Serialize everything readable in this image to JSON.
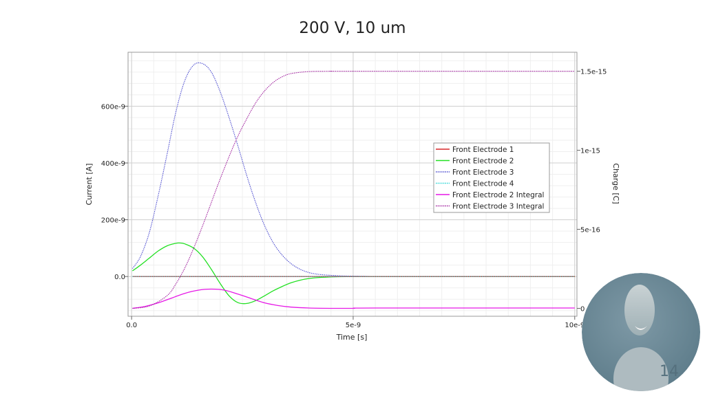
{
  "slide": {
    "title": "200 V,  10 um",
    "page_number": "14"
  },
  "chart_data": {
    "type": "line",
    "title": "",
    "xlabel": "Time [s]",
    "ylabel": "Current [A]",
    "y2label": "Charge [C]",
    "xlim": [
      -8e-11,
      1.005e-08
    ],
    "ylim": [
      -1.4e-07,
      7.9e-07
    ],
    "y2lim": [
      -5e-17,
      1.62e-15
    ],
    "xticks": [
      {
        "value": 0,
        "label": "0.0"
      },
      {
        "value": 5e-09,
        "label": "5e-9"
      },
      {
        "value": 1e-08,
        "label": "10e-9"
      }
    ],
    "yticks": [
      {
        "value": 0,
        "label": "0.0"
      },
      {
        "value": 2e-07,
        "label": "200e-9"
      },
      {
        "value": 4e-07,
        "label": "400e-9"
      },
      {
        "value": 6e-07,
        "label": "600e-9"
      }
    ],
    "y2ticks": [
      {
        "value": 0,
        "label": "0"
      },
      {
        "value": 5e-16,
        "label": "5e-16"
      },
      {
        "value": 1e-15,
        "label": "1e-15"
      },
      {
        "value": 1.5e-15,
        "label": "1.5e-15"
      }
    ],
    "grid": true,
    "legend_position": "center-right",
    "series": [
      {
        "name": "Front Electrode 1",
        "axis": "left",
        "color": "#d62728",
        "dash": "solid",
        "x": [
          0.0,
          1e-08
        ],
        "y": [
          0,
          0
        ]
      },
      {
        "name": "Front Electrode 2",
        "axis": "left",
        "color": "#22e022",
        "dash": "solid",
        "x": [
          0.0,
          2e-10,
          4e-10,
          6e-10,
          8e-10,
          1e-09,
          1.1e-09,
          1.2e-09,
          1.4e-09,
          1.6e-09,
          1.8e-09,
          2e-09,
          2.2e-09,
          2.4e-09,
          2.6e-09,
          2.8e-09,
          3e-09,
          3.2e-09,
          3.4e-09,
          3.6e-09,
          3.8e-09,
          4e-09,
          4.3e-09,
          4.6e-09,
          5e-09,
          5.5e-09,
          1e-08
        ],
        "y": [
          2e-08,
          4e-08,
          6.5e-08,
          9e-08,
          1.08e-07,
          1.17e-07,
          1.18e-07,
          1.15e-07,
          1e-07,
          7e-08,
          2.5e-08,
          -2.5e-08,
          -6.8e-08,
          -9.2e-08,
          -9.5e-08,
          -8.5e-08,
          -6.8e-08,
          -5e-08,
          -3.5e-08,
          -2.2e-08,
          -1.3e-08,
          -7e-09,
          -3e-09,
          -1e-09,
          0,
          0,
          0
        ]
      },
      {
        "name": "Front Electrode 3",
        "axis": "left",
        "color": "#4a4acf",
        "dash": "dotted",
        "x": [
          0.0,
          2e-10,
          4e-10,
          6e-10,
          8e-10,
          1e-09,
          1.2e-09,
          1.4e-09,
          1.6e-09,
          1.8e-09,
          2e-09,
          2.2e-09,
          2.4e-09,
          2.6e-09,
          2.8e-09,
          3e-09,
          3.2e-09,
          3.4e-09,
          3.6e-09,
          3.8e-09,
          4e-09,
          4.2e-09,
          4.5e-09,
          4.8e-09,
          5.2e-09,
          6e-09,
          1e-08
        ],
        "y": [
          2.8e-08,
          7e-08,
          1.55e-07,
          2.85e-07,
          4.3e-07,
          5.8e-07,
          6.9e-07,
          7.45e-07,
          7.5e-07,
          7.2e-07,
          6.5e-07,
          5.6e-07,
          4.6e-07,
          3.55e-07,
          2.6e-07,
          1.8e-07,
          1.18e-07,
          7.5e-08,
          4.5e-08,
          2.6e-08,
          1.4e-08,
          8e-09,
          4e-09,
          2e-09,
          1e-09,
          0,
          0
        ]
      },
      {
        "name": "Front Electrode 4",
        "axis": "left",
        "color": "#2ad6d6",
        "dash": "dotted",
        "x": [
          0.0,
          1e-08
        ],
        "y": [
          0,
          0
        ]
      },
      {
        "name": "Front Electrode 2 Integral",
        "axis": "right",
        "color": "#e617e6",
        "dash": "solid",
        "x": [
          0.0,
          3e-10,
          6e-10,
          9e-10,
          1.2e-09,
          1.5e-09,
          1.8e-09,
          2.1e-09,
          2.4e-09,
          2.7e-09,
          3e-09,
          3.3e-09,
          3.6e-09,
          4e-09,
          4.5e-09,
          5e-09,
          5.5e-09,
          1e-08
        ],
        "y": [
          0,
          1.2e-17,
          3.5e-17,
          6.5e-17,
          9.5e-17,
          1.15e-16,
          1.22e-16,
          1.15e-16,
          9e-17,
          6.2e-17,
          3.5e-17,
          1.8e-17,
          8e-18,
          2e-18,
          0,
          0,
          2e-18,
          2e-18
        ]
      },
      {
        "name": "Front Electrode 3 Integral",
        "axis": "right",
        "color": "#a0209e",
        "dash": "dotted",
        "x": [
          0.0,
          4e-10,
          8e-10,
          1e-09,
          1.2e-09,
          1.4e-09,
          1.6e-09,
          1.8e-09,
          2e-09,
          2.2e-09,
          2.4e-09,
          2.6e-09,
          2.8e-09,
          3e-09,
          3.2e-09,
          3.4e-09,
          3.6e-09,
          4e-09,
          4.5e-09,
          5e-09,
          1e-08
        ],
        "y": [
          0,
          1.5e-17,
          8e-17,
          1.55e-16,
          2.55e-16,
          3.8e-16,
          5.2e-16,
          6.7e-16,
          8.2e-16,
          9.6e-16,
          1.09e-15,
          1.2e-15,
          1.3e-15,
          1.375e-15,
          1.43e-15,
          1.465e-15,
          1.485e-15,
          1.498e-15,
          1.5e-15,
          1.5e-15,
          1.5e-15
        ]
      }
    ]
  }
}
